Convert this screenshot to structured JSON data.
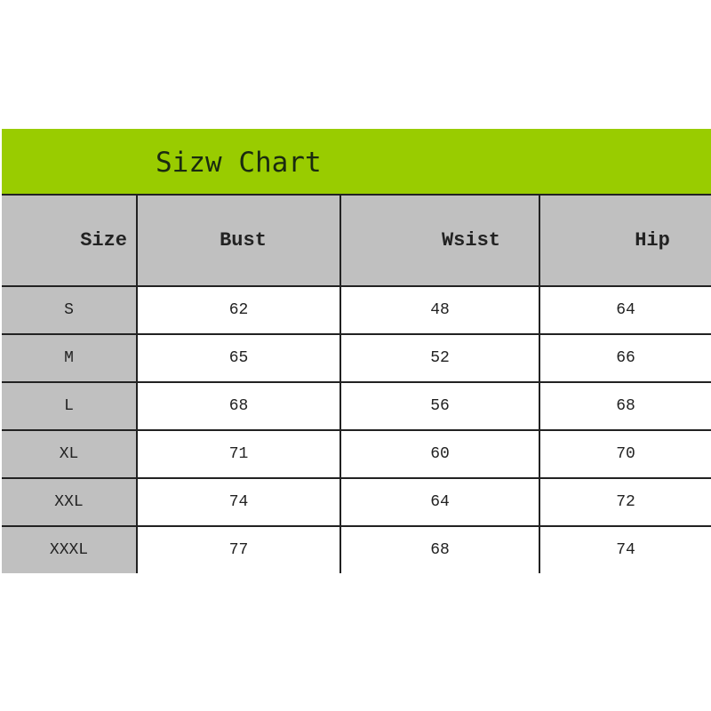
{
  "title": "Sizw Chart",
  "colors": {
    "title_bar": "#99cc00",
    "header_bg": "#c0c0c0",
    "size_col_bg": "#c0c0c0"
  },
  "headers": [
    "Size",
    "Bust",
    "Wsist",
    "Hip"
  ],
  "rows": [
    [
      "S",
      "62",
      "48",
      "64"
    ],
    [
      "M",
      "65",
      "52",
      "66"
    ],
    [
      "L",
      "68",
      "56",
      "68"
    ],
    [
      "XL",
      "71",
      "60",
      "70"
    ],
    [
      "XXL",
      "74",
      "64",
      "72"
    ],
    [
      "XXXL",
      "77",
      "68",
      "74"
    ]
  ]
}
